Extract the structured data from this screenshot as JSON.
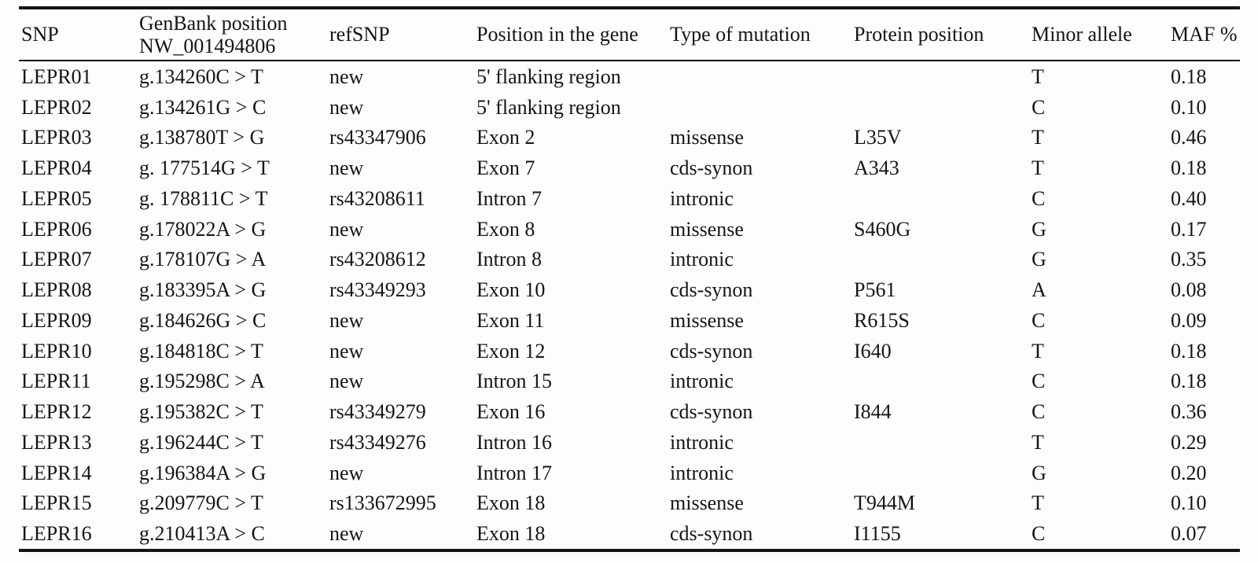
{
  "colors": {
    "background": "#fdfdfd",
    "text": "#151515",
    "rule": "#141414"
  },
  "table": {
    "columns": [
      {
        "key": "snp",
        "label": "SNP"
      },
      {
        "key": "genbank",
        "label": "GenBank position\nNW_001494806"
      },
      {
        "key": "refsnp",
        "label": "refSNP"
      },
      {
        "key": "position",
        "label": "Position in the gene"
      },
      {
        "key": "mutation",
        "label": "Type of mutation"
      },
      {
        "key": "protein",
        "label": "Protein position"
      },
      {
        "key": "minor",
        "label": "Minor allele"
      },
      {
        "key": "maf",
        "label": "MAF %"
      }
    ],
    "rows": [
      {
        "snp": "LEPR01",
        "genbank": "g.134260C > T",
        "refsnp": "new",
        "position": "5' flanking region",
        "mutation": "",
        "protein": "",
        "minor": "T",
        "maf": "0.18"
      },
      {
        "snp": "LEPR02",
        "genbank": "g.134261G > C",
        "refsnp": "new",
        "position": "5' flanking region",
        "mutation": "",
        "protein": "",
        "minor": "C",
        "maf": "0.10"
      },
      {
        "snp": "LEPR03",
        "genbank": "g.138780T > G",
        "refsnp": "rs43347906",
        "position": "Exon 2",
        "mutation": "missense",
        "protein": "L35V",
        "minor": "T",
        "maf": "0.46"
      },
      {
        "snp": "LEPR04",
        "genbank": "g. 177514G > T",
        "refsnp": "new",
        "position": "Exon 7",
        "mutation": "cds-synon",
        "protein": "A343",
        "minor": "T",
        "maf": "0.18"
      },
      {
        "snp": "LEPR05",
        "genbank": "g. 178811C > T",
        "refsnp": "rs43208611",
        "position": "Intron 7",
        "mutation": "intronic",
        "protein": "",
        "minor": "C",
        "maf": "0.40"
      },
      {
        "snp": "LEPR06",
        "genbank": "g.178022A > G",
        "refsnp": "new",
        "position": "Exon 8",
        "mutation": "missense",
        "protein": "S460G",
        "minor": "G",
        "maf": "0.17"
      },
      {
        "snp": "LEPR07",
        "genbank": "g.178107G > A",
        "refsnp": "rs43208612",
        "position": "Intron 8",
        "mutation": "intronic",
        "protein": "",
        "minor": "G",
        "maf": "0.35"
      },
      {
        "snp": "LEPR08",
        "genbank": "g.183395A > G",
        "refsnp": "rs43349293",
        "position": "Exon 10",
        "mutation": "cds-synon",
        "protein": "P561",
        "minor": "A",
        "maf": "0.08"
      },
      {
        "snp": "LEPR09",
        "genbank": "g.184626G > C",
        "refsnp": "new",
        "position": "Exon 11",
        "mutation": "missense",
        "protein": "R615S",
        "minor": "C",
        "maf": "0.09"
      },
      {
        "snp": "LEPR10",
        "genbank": "g.184818C > T",
        "refsnp": "new",
        "position": "Exon 12",
        "mutation": "cds-synon",
        "protein": "I640",
        "minor": "T",
        "maf": "0.18"
      },
      {
        "snp": "LEPR11",
        "genbank": "g.195298C > A",
        "refsnp": "new",
        "position": "Intron 15",
        "mutation": "intronic",
        "protein": "",
        "minor": "C",
        "maf": "0.18"
      },
      {
        "snp": "LEPR12",
        "genbank": "g.195382C > T",
        "refsnp": "rs43349279",
        "position": "Exon 16",
        "mutation": "cds-synon",
        "protein": "I844",
        "minor": "C",
        "maf": "0.36"
      },
      {
        "snp": "LEPR13",
        "genbank": "g.196244C > T",
        "refsnp": "rs43349276",
        "position": "Intron 16",
        "mutation": "intronic",
        "protein": "",
        "minor": "T",
        "maf": "0.29"
      },
      {
        "snp": "LEPR14",
        "genbank": "g.196384A > G",
        "refsnp": "new",
        "position": "Intron 17",
        "mutation": "intronic",
        "protein": "",
        "minor": "G",
        "maf": "0.20"
      },
      {
        "snp": "LEPR15",
        "genbank": "g.209779C > T",
        "refsnp": "rs133672995",
        "position": "Exon 18",
        "mutation": "missense",
        "protein": "T944M",
        "minor": "T",
        "maf": "0.10"
      },
      {
        "snp": "LEPR16",
        "genbank": "g.210413A > C",
        "refsnp": "new",
        "position": "Exon 18",
        "mutation": "cds-synon",
        "protein": "I1155",
        "minor": "C",
        "maf": "0.07"
      }
    ]
  }
}
